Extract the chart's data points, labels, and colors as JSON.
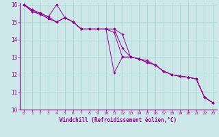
{
  "xlabel": "Windchill (Refroidissement éolien,°C)",
  "background_color": "#cce8e8",
  "grid_color": "#aad4d4",
  "line_color": "#990099",
  "spine_color": "#880088",
  "xlim": [
    -0.5,
    23.5
  ],
  "ylim": [
    10,
    16.1
  ],
  "xticks": [
    0,
    1,
    2,
    3,
    4,
    5,
    6,
    7,
    8,
    9,
    10,
    11,
    12,
    13,
    14,
    15,
    16,
    17,
    18,
    19,
    20,
    21,
    22,
    23
  ],
  "yticks": [
    10,
    11,
    12,
    13,
    14,
    15,
    16
  ],
  "lines": [
    [
      16.0,
      15.7,
      15.5,
      15.3,
      16.0,
      15.25,
      15.0,
      14.6,
      14.6,
      14.6,
      14.6,
      14.6,
      13.5,
      13.0,
      12.9,
      12.8,
      12.55,
      12.2,
      12.0,
      11.9,
      11.85,
      11.75,
      10.7,
      10.4
    ],
    [
      16.0,
      15.7,
      15.5,
      15.3,
      15.0,
      15.25,
      15.0,
      14.6,
      14.6,
      14.6,
      14.6,
      14.6,
      14.3,
      13.0,
      12.9,
      12.7,
      12.55,
      12.2,
      12.0,
      11.9,
      11.85,
      11.75,
      10.7,
      10.4
    ],
    [
      16.0,
      15.6,
      15.45,
      15.2,
      15.0,
      15.25,
      15.0,
      14.6,
      14.6,
      14.6,
      14.6,
      12.1,
      13.0,
      13.0,
      12.9,
      12.7,
      12.55,
      12.2,
      12.0,
      11.9,
      11.85,
      11.75,
      10.7,
      10.4
    ],
    [
      16.0,
      15.6,
      15.45,
      15.2,
      15.0,
      15.25,
      15.0,
      14.6,
      14.6,
      14.6,
      14.6,
      14.4,
      13.0,
      13.0,
      12.9,
      12.7,
      12.55,
      12.2,
      12.0,
      11.9,
      11.85,
      11.75,
      10.7,
      10.4
    ]
  ]
}
